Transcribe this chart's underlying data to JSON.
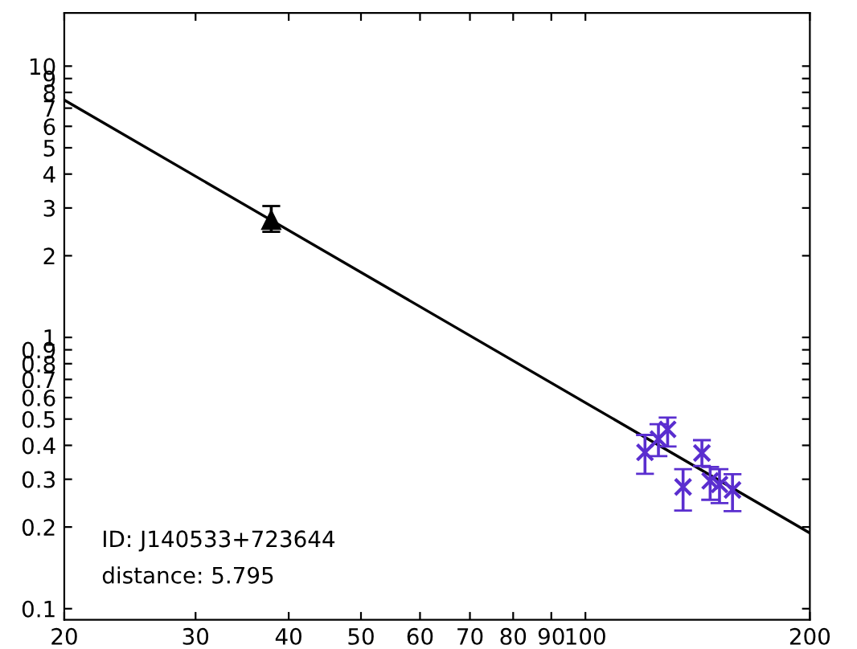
{
  "chart_data": {
    "type": "scatter",
    "log": "xy",
    "grid": false,
    "legend": false,
    "xlim": [
      20,
      200
    ],
    "ylim": [
      0.091,
      15.7
    ],
    "xticks": [
      20,
      30,
      40,
      50,
      60,
      70,
      80,
      90,
      100,
      {
        "value": 200,
        "label": "200"
      }
    ],
    "yticks": [
      0.1,
      0.2,
      0.3,
      0.4,
      0.5,
      0.6,
      0.7,
      0.8,
      0.9,
      1,
      2,
      3,
      4,
      5,
      6,
      7,
      8,
      9,
      10
    ],
    "series": [
      {
        "type": "line",
        "color": "#000000",
        "marker": "none",
        "line_style": "solid",
        "x": [
          20,
          200
        ],
        "values": [
          7.5,
          0.19
        ]
      },
      {
        "color": "#000000",
        "marker": "triangle",
        "x": [
          37.9
        ],
        "values": [
          2.7
        ],
        "errors": [
          [
            2.45,
            3.05
          ]
        ]
      },
      {
        "color": "#5a2ecf",
        "marker": "cross",
        "x": [
          120.2,
          125.3,
          128.9,
          135.2,
          143.3,
          147,
          151.3,
          157.5
        ],
        "values": [
          0.377,
          0.422,
          0.458,
          0.281,
          0.375,
          0.296,
          0.287,
          0.274
        ],
        "errors": [
          [
            0.314,
            0.437
          ],
          [
            0.365,
            0.479
          ],
          [
            0.396,
            0.506
          ],
          [
            0.23,
            0.327
          ],
          [
            0.336,
            0.418
          ],
          [
            0.252,
            0.333
          ],
          [
            0.245,
            0.327
          ],
          [
            0.229,
            0.313
          ]
        ]
      }
    ],
    "annotations": [
      "ID: J140533+723644",
      "distance: 5.795"
    ]
  }
}
